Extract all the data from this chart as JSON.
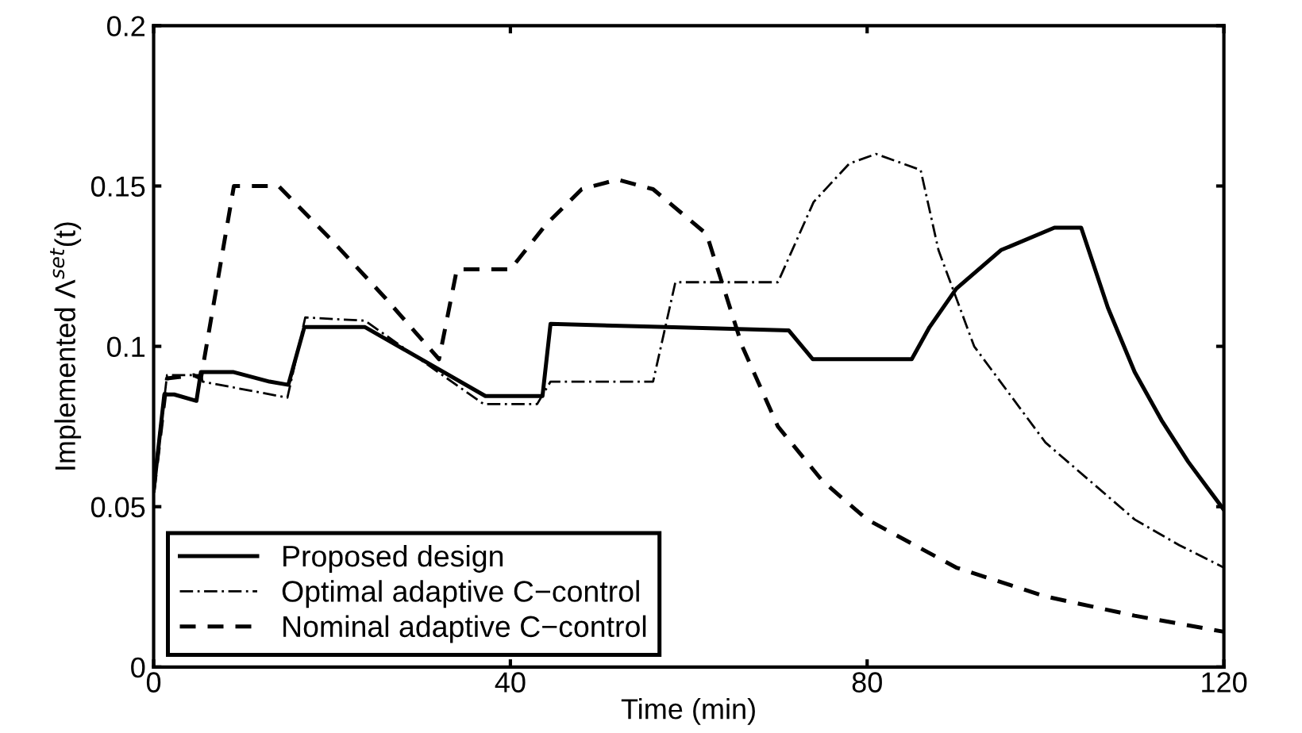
{
  "chart_data": {
    "type": "line",
    "xlabel": "Time (min)",
    "ylabel": "Implemented Λ$^{set}$(t)",
    "xlim": [
      0,
      120
    ],
    "ylim": [
      0,
      0.2
    ],
    "xticks": [
      0,
      40,
      80,
      120
    ],
    "yticks": [
      0,
      0.05,
      0.1,
      0.15,
      0.2
    ],
    "grid": false,
    "legend": "bottom left",
    "marker": "none",
    "series": [
      {
        "name": "Proposed design",
        "color": "#000000",
        "line_style": "solid",
        "x": [
          0,
          1.2,
          2.3,
          4.8,
          5.3,
          8.9,
          13,
          15.1,
          16.9,
          23.7,
          37.2,
          43.6,
          44.5,
          57.5,
          71.2,
          73.9,
          85,
          87,
          90,
          95,
          101,
          104,
          107,
          110,
          113,
          116,
          120
        ],
        "values": [
          0.055,
          0.085,
          0.085,
          0.083,
          0.092,
          0.092,
          0.089,
          0.088,
          0.106,
          0.106,
          0.0845,
          0.0845,
          0.107,
          0.106,
          0.105,
          0.096,
          0.096,
          0.106,
          0.118,
          0.13,
          0.137,
          0.137,
          0.112,
          0.092,
          0.077,
          0.064,
          0.049
        ]
      },
      {
        "name": "Optimal adaptive C−control",
        "color": "#000000",
        "line_style": "dashdot",
        "x": [
          0,
          1.5,
          5.3,
          5.5,
          15,
          17,
          23.7,
          37,
          43,
          44.5,
          56,
          58.5,
          70,
          74,
          78,
          81,
          86,
          88,
          92,
          96,
          100,
          105,
          110,
          115,
          120
        ],
        "values": [
          0.055,
          0.091,
          0.091,
          0.089,
          0.084,
          0.109,
          0.108,
          0.082,
          0.082,
          0.089,
          0.089,
          0.12,
          0.12,
          0.145,
          0.157,
          0.16,
          0.155,
          0.13,
          0.1,
          0.085,
          0.07,
          0.058,
          0.046,
          0.038,
          0.031
        ]
      },
      {
        "name": "Nominal adaptive C−control",
        "color": "#000000",
        "line_style": "dashed",
        "x": [
          0,
          1.5,
          4.5,
          5.3,
          9,
          14,
          20,
          26,
          32,
          34,
          40,
          44,
          48,
          52,
          56,
          62,
          66,
          70,
          75,
          80,
          90,
          100,
          110,
          120
        ],
        "values": [
          0.055,
          0.09,
          0.091,
          0.09,
          0.15,
          0.15,
          0.133,
          0.115,
          0.096,
          0.124,
          0.124,
          0.138,
          0.149,
          0.152,
          0.149,
          0.135,
          0.1,
          0.075,
          0.058,
          0.046,
          0.031,
          0.022,
          0.016,
          0.011
        ]
      }
    ]
  }
}
